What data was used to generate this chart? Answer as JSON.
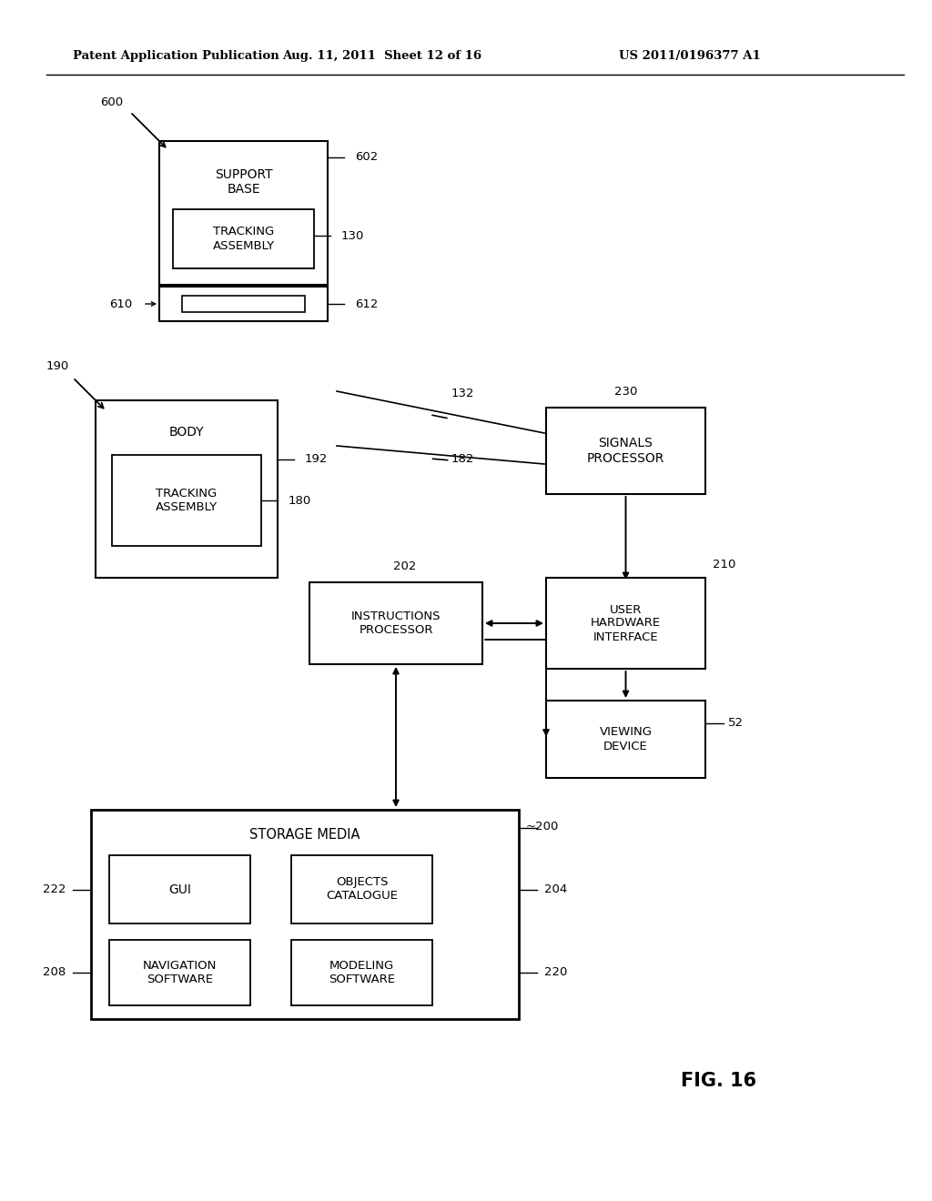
{
  "header_left": "Patent Application Publication",
  "header_mid": "Aug. 11, 2011  Sheet 12 of 16",
  "header_right": "US 2011/0196377 A1",
  "fig_label": "FIG. 16",
  "background": "#ffffff"
}
